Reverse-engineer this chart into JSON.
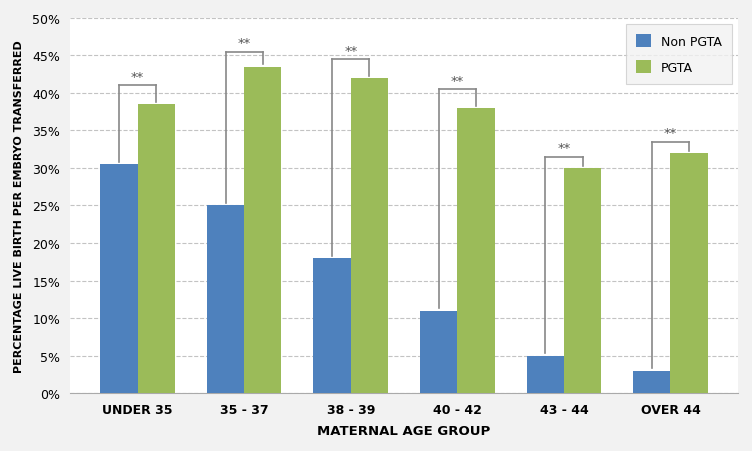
{
  "categories": [
    "UNDER 35",
    "35 - 37",
    "38 - 39",
    "40 - 42",
    "43 - 44",
    "OVER 44"
  ],
  "non_pgta": [
    30.5,
    25.0,
    18.0,
    11.0,
    5.0,
    3.0
  ],
  "pgta": [
    38.5,
    43.5,
    42.0,
    38.0,
    30.0,
    32.0
  ],
  "non_pgta_color": "#4E81BD",
  "pgta_color": "#9BBB59",
  "xlabel": "MATERNAL AGE GROUP",
  "ylabel": "PERCENTAGE LIVE BIRTH PER EMBRYO TRANSFERRED",
  "ylim": [
    0,
    50
  ],
  "yticks": [
    0,
    5,
    10,
    15,
    20,
    25,
    30,
    35,
    40,
    45,
    50
  ],
  "ytick_labels": [
    "0%",
    "5%",
    "10%",
    "15%",
    "20%",
    "25%",
    "30%",
    "35%",
    "40%",
    "45%",
    "50%"
  ],
  "legend_non_pgta": "Non PGTA",
  "legend_pgta": "PGTA",
  "significance_label": "**",
  "bar_width": 0.35,
  "background_color": "#F2F2F2",
  "plot_bg_color": "#FFFFFF",
  "grid_color": "#AAAAAA",
  "bracket_color": "#888888",
  "bracket_top_offsets": [
    41.0,
    45.5,
    44.5,
    40.5,
    31.5,
    33.5
  ]
}
